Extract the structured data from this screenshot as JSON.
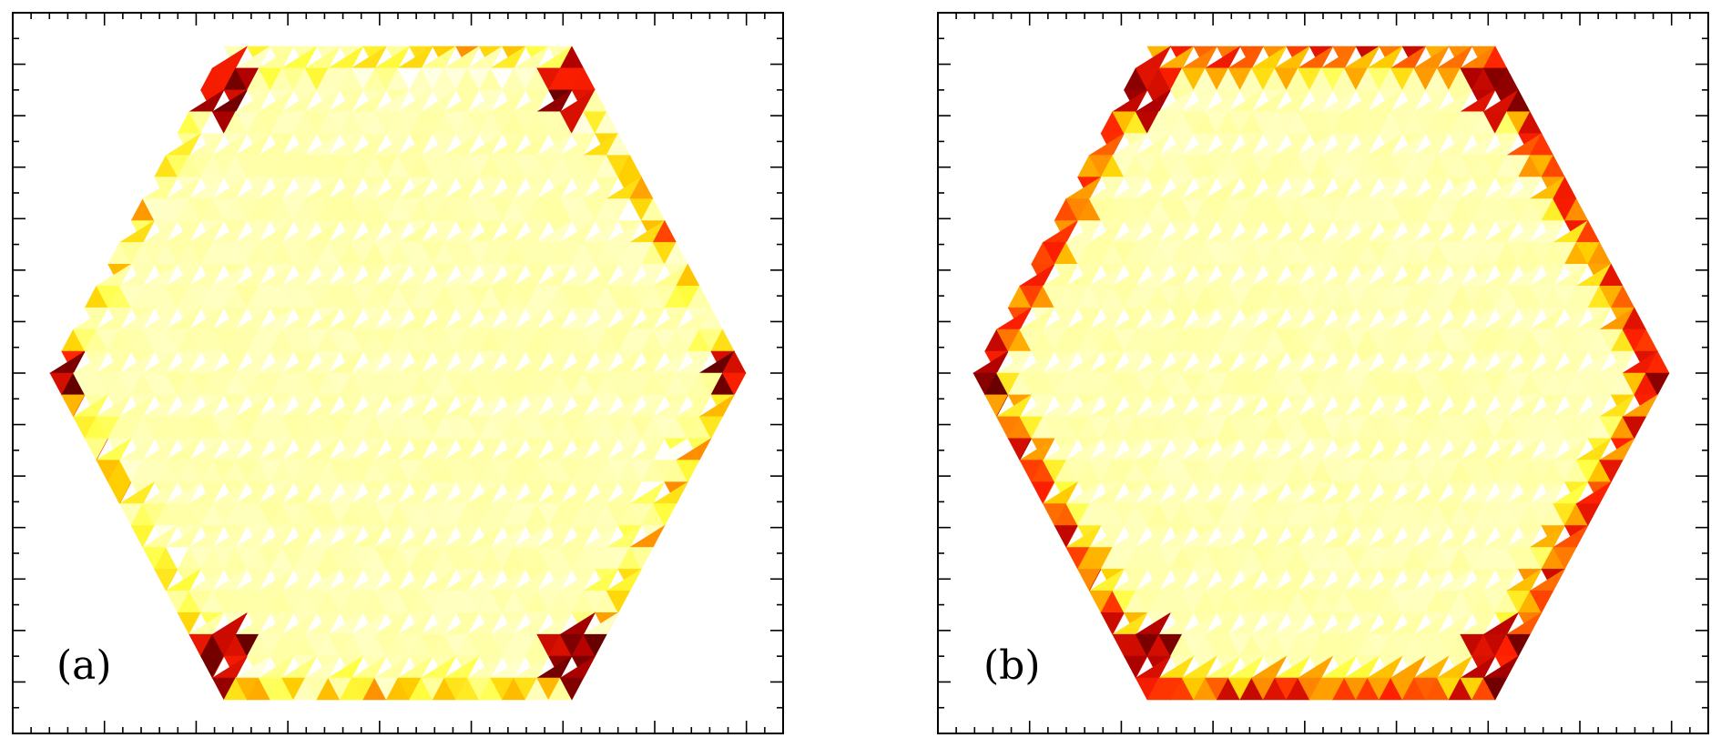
{
  "chart_data": [
    {
      "type": "heatmap",
      "shape": "hexagon",
      "panel_label": "(a)",
      "colormap": [
        "#3a0000",
        "#b00000",
        "#ff2000",
        "#ff8c00",
        "#ffd000",
        "#ffff40",
        "#ffffa0",
        "#ffffff"
      ],
      "interior_color": "#ffff80",
      "edge_intensity": "moderate",
      "grid": false,
      "axis_tick_labels": false
    },
    {
      "type": "heatmap",
      "shape": "hexagon",
      "panel_label": "(b)",
      "colormap": [
        "#3a0000",
        "#b00000",
        "#ff2000",
        "#ff8c00",
        "#ffd000",
        "#ffff40",
        "#ffffa0",
        "#ffffff"
      ],
      "interior_color": "#ffff70",
      "edge_intensity": "strong",
      "grid": false,
      "axis_tick_labels": false
    }
  ]
}
